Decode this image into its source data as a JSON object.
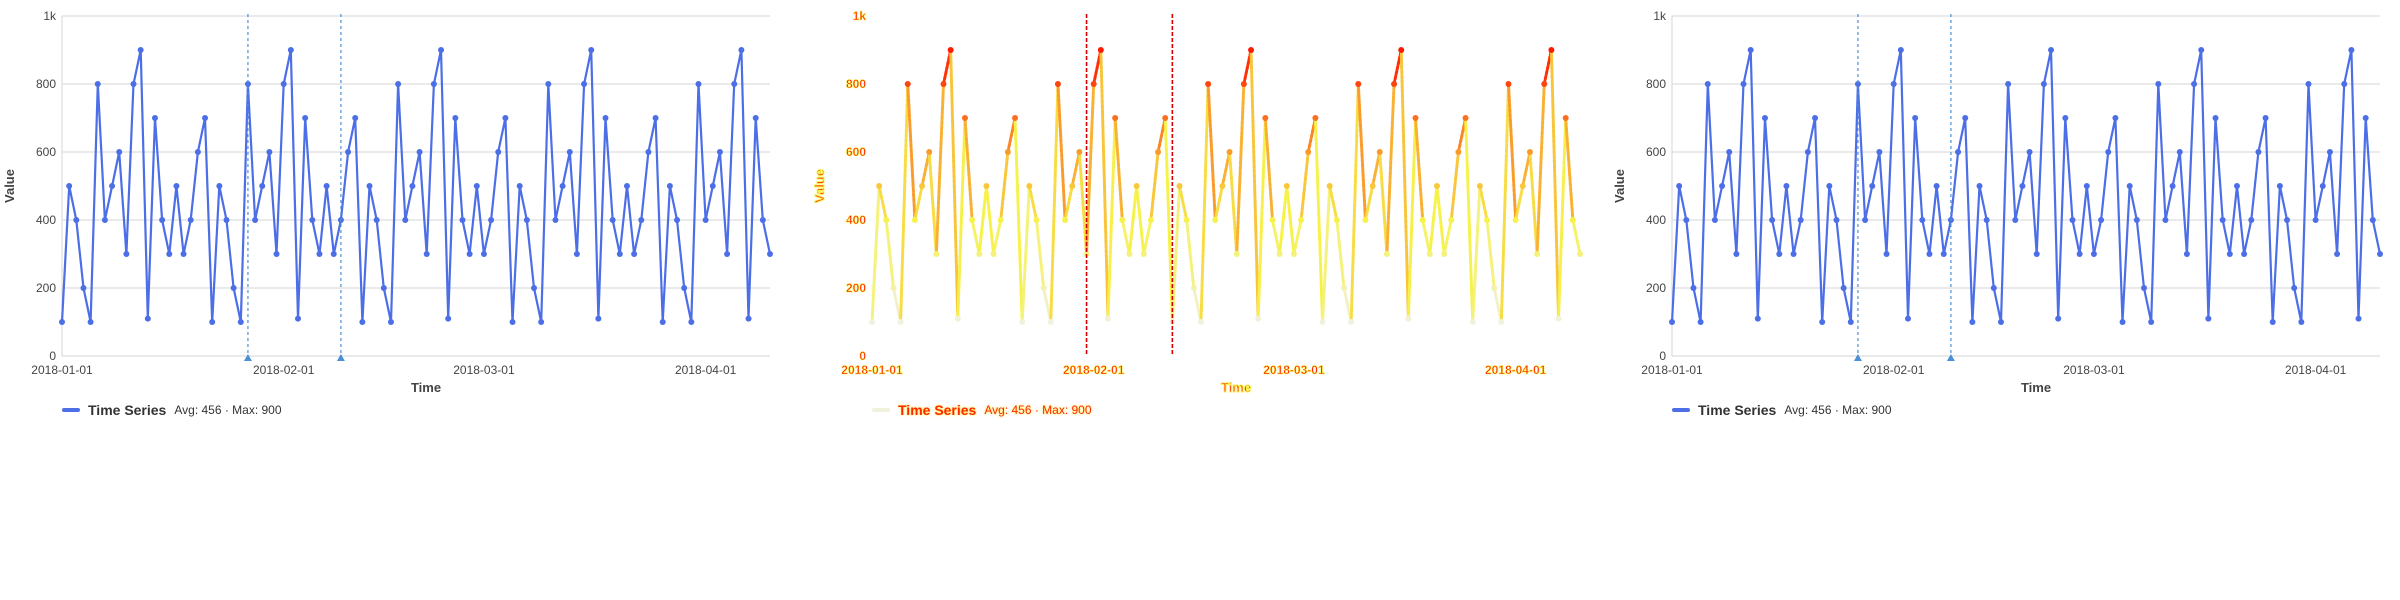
{
  "colors": {
    "series": "#4c6ee6",
    "marker": "#4a90d9",
    "grid": "#d6d6d6",
    "axis_text": "#444444",
    "heat_low": "#f1f1dd",
    "heat_mid": "#f6f24a",
    "heat_high": "#ff1a00",
    "heat_marker": "#d40000"
  },
  "legend": {
    "series_name": "Time Series",
    "stats": "Avg: 456 · Max: 900"
  },
  "chart_data": [
    {
      "type": "line",
      "xlabel": "Time",
      "ylabel": "Value",
      "ylim": [
        0,
        1000
      ],
      "y_ticks": [
        "0",
        "200",
        "400",
        "600",
        "800",
        "1k"
      ],
      "x_ticks": [
        "2018-01-01",
        "2018-02-01",
        "2018-03-01",
        "2018-04-01"
      ],
      "grid": true,
      "legend_position": "bottom-left",
      "series": [
        {
          "name": "Time Series",
          "x_start": "2018-01-01",
          "values": [
            100,
            500,
            400,
            200,
            100,
            800,
            400,
            500,
            600,
            300,
            800,
            900,
            110,
            700,
            400,
            300,
            500,
            300,
            400,
            600,
            700,
            100,
            500,
            400,
            200,
            100,
            800,
            400,
            500,
            600,
            300,
            800,
            900,
            110,
            700,
            400,
            300,
            500,
            300,
            400,
            600,
            700,
            100,
            500,
            400,
            200,
            100,
            800,
            400,
            500,
            600,
            300,
            800,
            900,
            110,
            700,
            400,
            300,
            500,
            300,
            400,
            600,
            700,
            100,
            500,
            400,
            200,
            100,
            800,
            400,
            500,
            600,
            300,
            800,
            900,
            110,
            700,
            400,
            300,
            500,
            300,
            400,
            600,
            700,
            100,
            500,
            400,
            200,
            100,
            800,
            400,
            500,
            600,
            300,
            800,
            900,
            110,
            700,
            400,
            300
          ]
        }
      ],
      "annotations": [
        {
          "type": "vline",
          "x": "2018-01-27",
          "style": "dashed"
        },
        {
          "type": "vline",
          "x": "2018-02-09",
          "style": "dashed"
        }
      ]
    },
    {
      "type": "heatmap-line",
      "xlabel": "Time",
      "ylabel": "Value",
      "ylim": [
        0,
        1000
      ],
      "y_ticks": [
        "0",
        "200",
        "400",
        "600",
        "800",
        "1k"
      ],
      "x_ticks": [
        "2018-01-01",
        "2018-02-01",
        "2018-03-01",
        "2018-04-01"
      ],
      "series": [
        {
          "name": "Time Series",
          "x_start": "2018-01-01",
          "values": [
            100,
            500,
            400,
            200,
            100,
            800,
            400,
            500,
            600,
            300,
            800,
            900,
            110,
            700,
            400,
            300,
            500,
            300,
            400,
            600,
            700,
            100,
            500,
            400,
            200,
            100,
            800,
            400,
            500,
            600,
            300,
            800,
            900,
            110,
            700,
            400,
            300,
            500,
            300,
            400,
            600,
            700,
            100,
            500,
            400,
            200,
            100,
            800,
            400,
            500,
            600,
            300,
            800,
            900,
            110,
            700,
            400,
            300,
            500,
            300,
            400,
            600,
            700,
            100,
            500,
            400,
            200,
            100,
            800,
            400,
            500,
            600,
            300,
            800,
            900,
            110,
            700,
            400,
            300,
            500,
            300,
            400,
            600,
            700,
            100,
            500,
            400,
            200,
            100,
            800,
            400,
            500,
            600,
            300,
            800,
            900,
            110,
            700,
            400,
            300
          ]
        }
      ],
      "annotations": [
        {
          "type": "vline",
          "x": "2018-01-31",
          "style": "dashed"
        },
        {
          "type": "vline",
          "x": "2018-02-12",
          "style": "dashed"
        }
      ]
    },
    {
      "type": "line",
      "xlabel": "Time",
      "ylabel": "Value",
      "ylim": [
        0,
        1000
      ],
      "y_ticks": [
        "0",
        "200",
        "400",
        "600",
        "800",
        "1k"
      ],
      "x_ticks": [
        "2018-01-01",
        "2018-02-01",
        "2018-03-01",
        "2018-04-01"
      ],
      "grid": true,
      "legend_position": "bottom-left",
      "series": [
        {
          "name": "Time Series",
          "x_start": "2018-01-01",
          "values": [
            100,
            500,
            400,
            200,
            100,
            800,
            400,
            500,
            600,
            300,
            800,
            900,
            110,
            700,
            400,
            300,
            500,
            300,
            400,
            600,
            700,
            100,
            500,
            400,
            200,
            100,
            800,
            400,
            500,
            600,
            300,
            800,
            900,
            110,
            700,
            400,
            300,
            500,
            300,
            400,
            600,
            700,
            100,
            500,
            400,
            200,
            100,
            800,
            400,
            500,
            600,
            300,
            800,
            900,
            110,
            700,
            400,
            300,
            500,
            300,
            400,
            600,
            700,
            100,
            500,
            400,
            200,
            100,
            800,
            400,
            500,
            600,
            300,
            800,
            900,
            110,
            700,
            400,
            300,
            500,
            300,
            400,
            600,
            700,
            100,
            500,
            400,
            200,
            100,
            800,
            400,
            500,
            600,
            300,
            800,
            900,
            110,
            700,
            400,
            300
          ]
        }
      ],
      "annotations": [
        {
          "type": "vline",
          "x": "2018-01-27",
          "style": "dashed"
        },
        {
          "type": "vline",
          "x": "2018-02-09",
          "style": "dashed"
        }
      ]
    }
  ]
}
